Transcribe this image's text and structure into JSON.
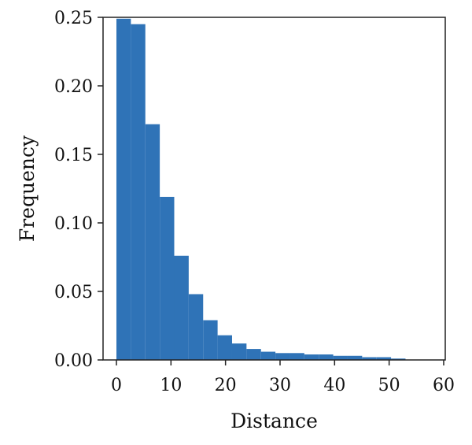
{
  "chart_data": {
    "type": "bar",
    "histogram": true,
    "xlabel": "Distance",
    "ylabel": "Frequency",
    "xlim": [
      0,
      60
    ],
    "ylim": [
      0,
      0.25
    ],
    "xticks": [
      "0",
      "10",
      "20",
      "30",
      "40",
      "50",
      "60"
    ],
    "yticks": [
      "0.00",
      "0.05",
      "0.10",
      "0.15",
      "0.20",
      "0.25"
    ],
    "bar_color": "#2f73b7",
    "grid": false,
    "legend": "none",
    "bin_edges": [
      0,
      2.65,
      5.3,
      7.95,
      10.6,
      13.25,
      15.9,
      18.55,
      21.2,
      23.85,
      26.5,
      29.15,
      31.8,
      34.45,
      37.1,
      39.75,
      42.4,
      45.05,
      47.7,
      50.35,
      53.0
    ],
    "values": [
      0.249,
      0.245,
      0.172,
      0.119,
      0.076,
      0.048,
      0.029,
      0.018,
      0.012,
      0.008,
      0.006,
      0.005,
      0.005,
      0.004,
      0.004,
      0.003,
      0.003,
      0.002,
      0.002,
      0.001
    ]
  }
}
